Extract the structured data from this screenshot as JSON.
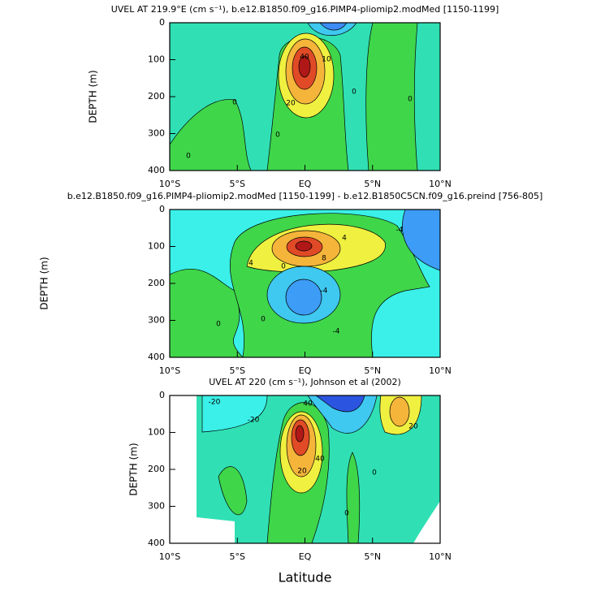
{
  "chart_data": [
    {
      "type": "contour",
      "title": "UVEL AT 219.9°E (cm s⁻¹), b.e12.B1850.f09_g16.PIMP4-pliomip2.modMed [1150-1199]",
      "ylabel": "DEPTH (m)",
      "ylim": [
        0,
        400
      ],
      "y_inverted": true,
      "yticks": [
        0,
        100,
        200,
        300,
        400
      ],
      "xlim": [
        -10,
        10
      ],
      "xticks": [
        {
          "value": -10,
          "label": "10°S"
        },
        {
          "value": -5,
          "label": "5°S"
        },
        {
          "value": 0,
          "label": "EQ"
        },
        {
          "value": 5,
          "label": "5°N"
        },
        {
          "value": 10,
          "label": "10°N"
        }
      ],
      "contour_labels": [
        0,
        40,
        10,
        20,
        0,
        0,
        0,
        0
      ]
    },
    {
      "type": "contour",
      "title": "b.e12.B1850.f09_g16.PIMP4-pliomip2.modMed [1150-1199] - b.e12.B1850C5CN.f09_g16.preind [756-805]",
      "ylabel": "DEPTH (m)",
      "ylim": [
        0,
        400
      ],
      "y_inverted": true,
      "yticks": [
        0,
        100,
        200,
        300,
        400
      ],
      "xlim": [
        -10,
        10
      ],
      "xticks": [
        {
          "value": -10,
          "label": "10°S"
        },
        {
          "value": -5,
          "label": "5°S"
        },
        {
          "value": 0,
          "label": "EQ"
        },
        {
          "value": 5,
          "label": "5°N"
        },
        {
          "value": 10,
          "label": "10°N"
        }
      ],
      "contour_labels": [
        4,
        -4,
        4,
        8,
        -4,
        0,
        0,
        -4,
        0
      ]
    },
    {
      "type": "contour",
      "title": "UVEL AT 220 (cm s⁻¹), Johnson et al (2002)",
      "ylabel": "DEPTH (m)",
      "xlabel": "Latitude",
      "ylim": [
        0,
        400
      ],
      "y_inverted": true,
      "yticks": [
        0,
        100,
        200,
        300,
        400
      ],
      "xlim": [
        -10,
        10
      ],
      "xticks": [
        {
          "value": -10,
          "label": "10°S"
        },
        {
          "value": -5,
          "label": "5°S"
        },
        {
          "value": 0,
          "label": "EQ"
        },
        {
          "value": 5,
          "label": "5°N"
        },
        {
          "value": 10,
          "label": "10°N"
        }
      ],
      "contour_labels": [
        -20,
        -20,
        40,
        20,
        40,
        20,
        0,
        0
      ]
    }
  ]
}
